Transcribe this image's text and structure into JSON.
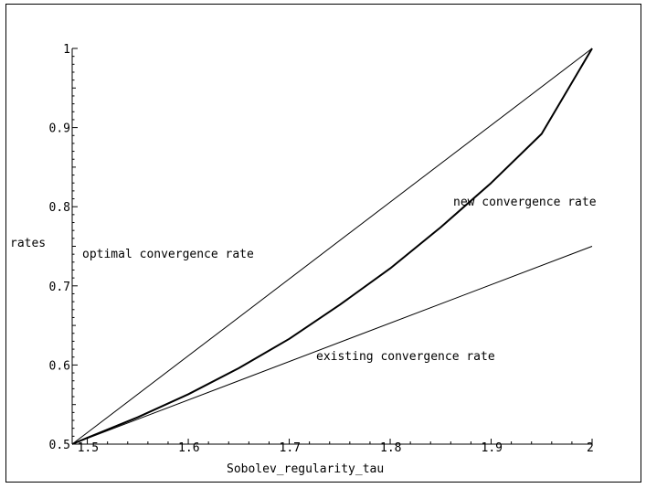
{
  "chart_data": {
    "type": "line",
    "title": "",
    "xlabel": "Sobolev_regularity_tau",
    "ylabel": "rates",
    "xlim": [
      1.485,
      2.0
    ],
    "ylim": [
      0.5,
      1.0
    ],
    "grid": false,
    "legend": "none",
    "x_ticks": [
      {
        "value": 1.5,
        "label": "1.5"
      },
      {
        "value": 1.6,
        "label": "1.6"
      },
      {
        "value": 1.7,
        "label": "1.7"
      },
      {
        "value": 1.8,
        "label": "1.8"
      },
      {
        "value": 1.9,
        "label": "1.9"
      },
      {
        "value": 2.0,
        "label": "2"
      }
    ],
    "y_ticks": [
      {
        "value": 0.5,
        "label": "0.5"
      },
      {
        "value": 0.6,
        "label": "0.6"
      },
      {
        "value": 0.7,
        "label": "0.7"
      },
      {
        "value": 0.8,
        "label": "0.8"
      },
      {
        "value": 0.9,
        "label": "0.9"
      },
      {
        "value": 1.0,
        "label": "1"
      }
    ],
    "series": [
      {
        "name": "optimal convergence rate",
        "color": "#000000",
        "x": [
          1.485,
          2.0
        ],
        "y": [
          0.5,
          1.0
        ]
      },
      {
        "name": "new convergence rate",
        "color": "#000000",
        "x": [
          1.485,
          1.5,
          1.55,
          1.6,
          1.65,
          1.7,
          1.75,
          1.8,
          1.85,
          1.9,
          1.95,
          2.0
        ],
        "y": [
          0.5,
          0.508,
          0.534,
          0.563,
          0.596,
          0.633,
          0.676,
          0.722,
          0.774,
          0.83,
          0.892,
          1.0
        ]
      },
      {
        "name": "existing convergence rate",
        "color": "#000000",
        "x": [
          1.485,
          2.0
        ],
        "y": [
          0.5,
          0.75
        ]
      }
    ],
    "annotations": [
      {
        "text": "optimal convergence rate",
        "series": 0
      },
      {
        "text": "new convergence rate",
        "series": 1
      },
      {
        "text": "existing convergence rate",
        "series": 2
      }
    ]
  }
}
